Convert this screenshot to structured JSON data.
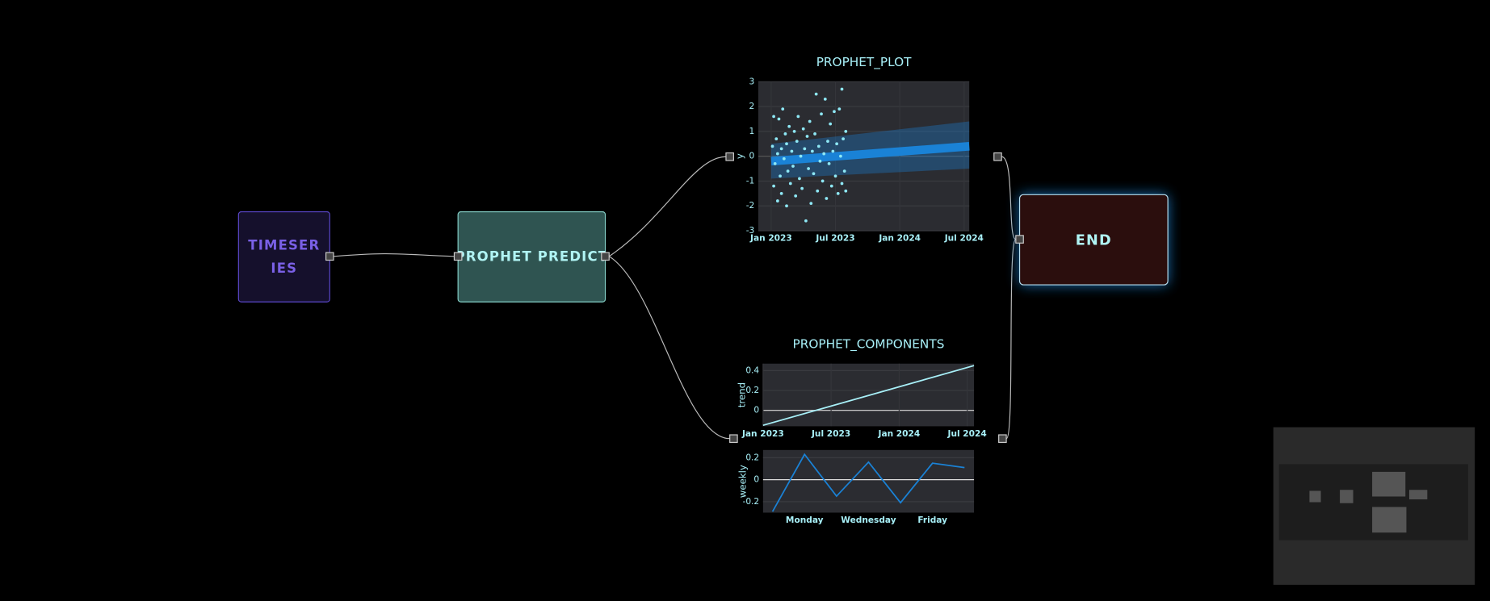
{
  "nodes": [
    {
      "label": "TIMESERIES"
    },
    {
      "label": "PROPHET PREDICT"
    },
    {
      "label": "END"
    }
  ],
  "prophet_plot": {
    "type": "scatter",
    "title": "PROPHET_PLOT",
    "y_label": "y",
    "xlim": [
      2022.9,
      2024.54
    ],
    "ylim": [
      -3,
      3
    ],
    "xticks": [
      {
        "value": 2023,
        "label": "Jan 2023"
      },
      {
        "value": 2023.5,
        "label": "Jul 2023"
      },
      {
        "value": 2024,
        "label": "Jan 2024"
      },
      {
        "value": 2024.5,
        "label": "Jul 2024"
      }
    ],
    "yticks": [
      -3,
      -2,
      -1,
      0,
      1,
      2,
      3
    ],
    "points": {
      "color": "#8ee8f5",
      "x": [
        2023.01,
        2023.02,
        2023.02,
        2023.03,
        2023.04,
        2023.05,
        2023.05,
        2023.06,
        2023.07,
        2023.08,
        2023.08,
        2023.09,
        2023.1,
        2023.11,
        2023.12,
        2023.12,
        2023.13,
        2023.14,
        2023.15,
        2023.16,
        2023.17,
        2023.18,
        2023.19,
        2023.2,
        2023.21,
        2023.22,
        2023.23,
        2023.24,
        2023.25,
        2023.26,
        2023.27,
        2023.28,
        2023.29,
        2023.3,
        2023.31,
        2023.32,
        2023.33,
        2023.34,
        2023.35,
        2023.36,
        2023.37,
        2023.38,
        2023.39,
        2023.4,
        2023.41,
        2023.42,
        2023.43,
        2023.44,
        2023.45,
        2023.46,
        2023.47,
        2023.48,
        2023.49,
        2023.5,
        2023.51,
        2023.52,
        2023.53,
        2023.54,
        2023.55,
        2023.55,
        2023.56,
        2023.57,
        2023.58,
        2023.58
      ],
      "y": [
        0.4,
        -1.2,
        1.6,
        -0.3,
        0.7,
        -1.8,
        0.1,
        1.5,
        -0.8,
        0.3,
        -1.5,
        1.9,
        -0.1,
        0.9,
        -2.0,
        0.5,
        -0.6,
        1.2,
        -1.1,
        0.2,
        -0.4,
        1.0,
        -1.6,
        0.6,
        1.6,
        -0.9,
        0.0,
        -1.3,
        1.1,
        0.3,
        -2.6,
        0.8,
        -0.5,
        1.4,
        -1.9,
        0.2,
        -0.7,
        0.9,
        2.5,
        -1.4,
        0.4,
        -0.2,
        1.7,
        -1.0,
        0.1,
        2.3,
        -1.7,
        0.6,
        -0.3,
        1.3,
        -1.2,
        0.2,
        1.8,
        -0.8,
        0.5,
        -1.5,
        1.9,
        0.0,
        2.7,
        -1.1,
        0.7,
        -0.6,
        1.0,
        -1.4
      ]
    },
    "forecast": {
      "color": "#1a82d6",
      "x": [
        2023.0,
        2024.54
      ],
      "yhat": [
        -0.2,
        0.4
      ],
      "lower": [
        -0.9,
        -0.5
      ],
      "upper": [
        0.5,
        1.4
      ]
    }
  },
  "prophet_components": {
    "title": "PROPHET_COMPONENTS",
    "trend": {
      "type": "line",
      "y_label": "trend",
      "xlim": [
        2023.0,
        2024.55
      ],
      "ylim": [
        -0.16,
        0.47
      ],
      "xticks": [
        {
          "value": 2023,
          "label": "Jan 2023"
        },
        {
          "value": 2023.5,
          "label": "Jul 2023"
        },
        {
          "value": 2024,
          "label": "Jan 2024"
        },
        {
          "value": 2024.5,
          "label": "Jul 2024"
        }
      ],
      "yticks": [
        0,
        0.2,
        0.4
      ],
      "x": [
        2023.0,
        2024.55
      ],
      "values": [
        -0.15,
        0.45
      ],
      "color": "#a8f0f8"
    },
    "weekly": {
      "type": "line",
      "y_label": "weekly",
      "categories": [
        null,
        "Monday",
        null,
        "Wednesday",
        null,
        "Friday",
        null
      ],
      "values": [
        -0.29,
        0.23,
        -0.15,
        0.16,
        -0.21,
        0.15,
        0.11
      ],
      "ylim": [
        -0.3,
        0.27
      ],
      "yticks": [
        -0.2,
        0,
        0.2
      ],
      "color": "#1a82d6"
    }
  }
}
